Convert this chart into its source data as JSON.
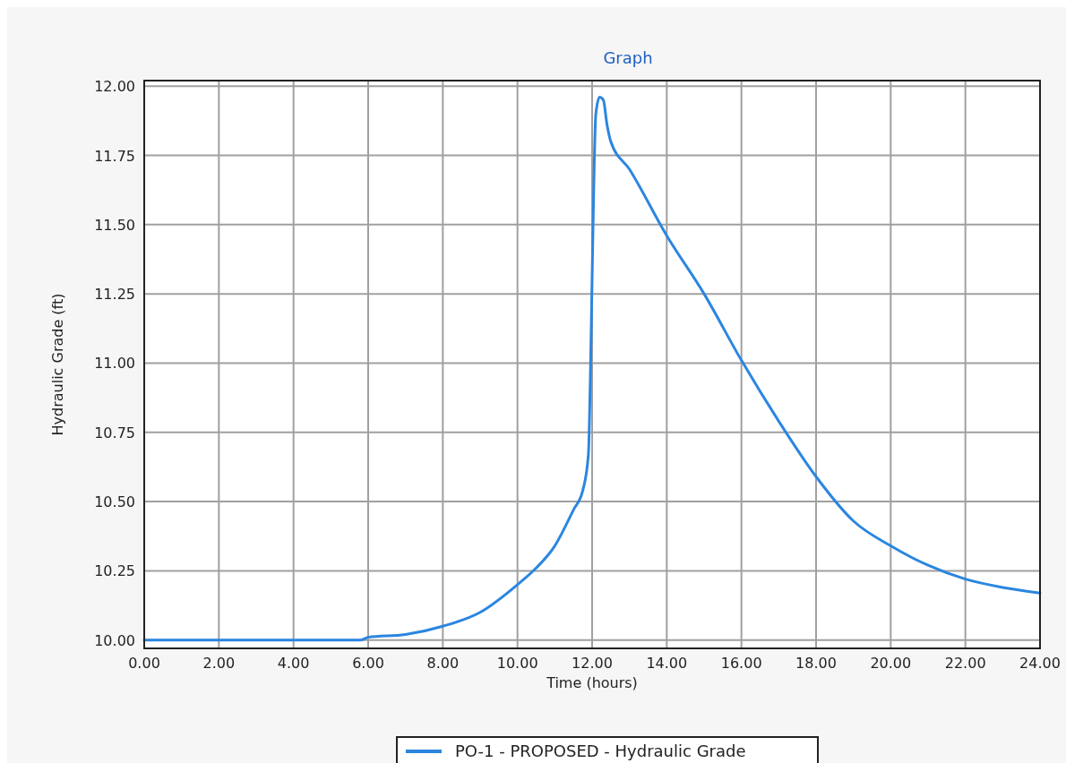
{
  "chart_data": {
    "type": "line",
    "title": "Graph",
    "xlabel": "Time (hours)",
    "ylabel": "Hydraulic Grade (ft)",
    "xlim": [
      0,
      24
    ],
    "ylim": [
      9.97,
      12.02
    ],
    "xticks": [
      {
        "value": 0,
        "label": "0.00"
      },
      {
        "value": 2,
        "label": "2.00"
      },
      {
        "value": 4,
        "label": "4.00"
      },
      {
        "value": 6,
        "label": "6.00"
      },
      {
        "value": 8,
        "label": "8.00"
      },
      {
        "value": 10,
        "label": "10.00"
      },
      {
        "value": 12,
        "label": "12.00"
      },
      {
        "value": 14,
        "label": "14.00"
      },
      {
        "value": 16,
        "label": "16.00"
      },
      {
        "value": 18,
        "label": "18.00"
      },
      {
        "value": 20,
        "label": "20.00"
      },
      {
        "value": 22,
        "label": "22.00"
      },
      {
        "value": 24,
        "label": "24.00"
      }
    ],
    "yticks": [
      {
        "value": 10,
        "label": "10.00"
      },
      10.25,
      {
        "value": 10.5,
        "label": "10.50"
      },
      10.75,
      {
        "value": 11,
        "label": "11.00"
      },
      11.25,
      {
        "value": 11.5,
        "label": "11.50"
      },
      11.75,
      {
        "value": 12,
        "label": "12.00"
      }
    ],
    "grid": true,
    "legend": "bottom",
    "marker": "none",
    "line_style": "solid",
    "series": [
      {
        "name": "PO-1 - PROPOSED - Hydraulic Grade",
        "color": "#2b86e0",
        "x": [
          0,
          2,
          4,
          5.8,
          6,
          7,
          8,
          9,
          10,
          10.5,
          11,
          11.5,
          11.75,
          11.9,
          11.95,
          12,
          12.1,
          12.2,
          12.3,
          12.4,
          12.5,
          13,
          14,
          15,
          16,
          17,
          18,
          19,
          20,
          21,
          22,
          23,
          24
        ],
        "values": [
          10,
          10,
          10,
          10,
          10.01,
          10.02,
          10.05,
          10.1,
          10.2,
          10.26,
          10.34,
          10.47,
          10.54,
          10.67,
          10.93,
          11.31,
          11.9,
          11.96,
          11.95,
          11.86,
          11.8,
          11.7,
          11.46,
          11.25,
          11.01,
          10.79,
          10.59,
          10.43,
          10.34,
          10.27,
          10.22,
          10.19,
          10.17
        ]
      }
    ]
  }
}
